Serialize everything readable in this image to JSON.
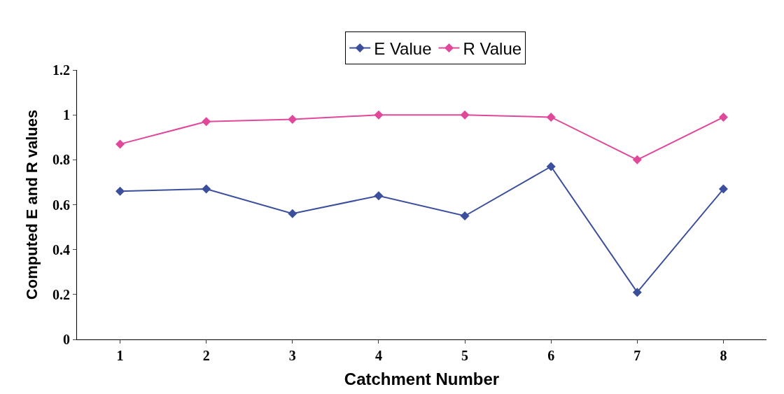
{
  "chart_data": {
    "type": "line",
    "xlabel": "Catchment Number",
    "ylabel": "Computed E and R values",
    "categories": [
      "1",
      "2",
      "3",
      "4",
      "5",
      "6",
      "7",
      "8"
    ],
    "series": [
      {
        "name": "E Value",
        "color": "#3c4f9c",
        "values": [
          0.66,
          0.67,
          0.56,
          0.64,
          0.55,
          0.77,
          0.21,
          0.67
        ]
      },
      {
        "name": "R Value",
        "color": "#e0489a",
        "values": [
          0.87,
          0.97,
          0.98,
          1.0,
          1.0,
          0.99,
          0.8,
          0.99
        ]
      }
    ],
    "ylim": [
      0,
      1.2
    ],
    "yticks": [
      0,
      0.2,
      0.4,
      0.6,
      0.8,
      1,
      1.2
    ],
    "legend": "top",
    "marker": "diamond",
    "line_style": "solid"
  }
}
